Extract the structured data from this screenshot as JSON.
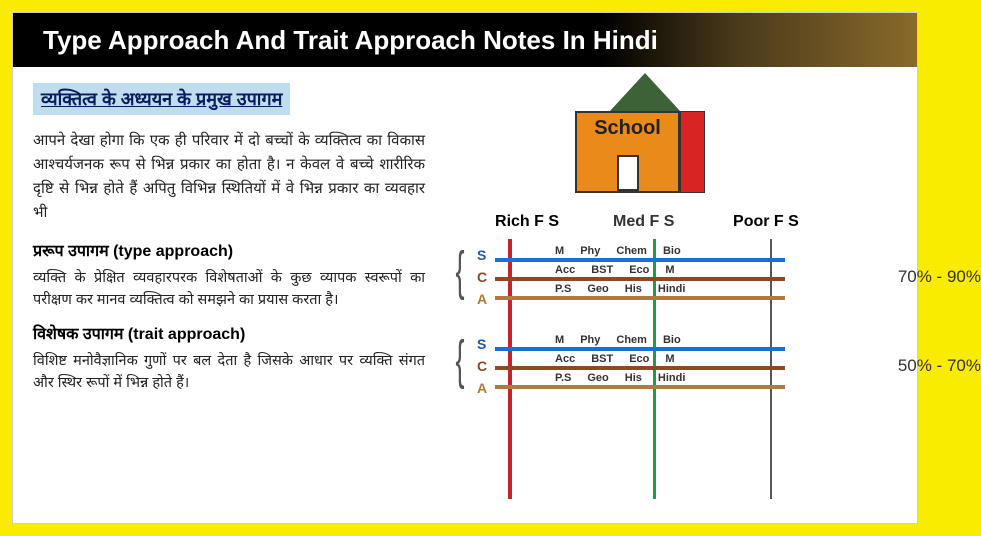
{
  "header": {
    "title": "Type Approach And Trait Approach Notes In Hindi"
  },
  "left": {
    "heading": "व्यक्तित्व के अध्ययन के प्रमुख उपागम",
    "intro": "आपने देखा होगा कि एक ही परिवार में दो बच्चों के व्यक्तित्व का विकास आश्चर्यजनक रूप से भिन्न प्रकार का होता है। न केवल वे बच्चे शारीरिक दृष्टि से भिन्न होते हैं अपितु विभिन्न स्थितियों में वे भिन्न प्रकार का व्यवहार भी",
    "type_heading": "प्ररूप उपागम (type approach)",
    "type_para": "व्यक्ति के प्रेक्षित व्यवहारपरक विशेषताओं के कुछ व्यापक स्वरूपों का परीक्षण कर मानव व्यक्तित्व को समझने का प्रयास करता है।",
    "trait_heading": "विशेषक उपागम (trait approach)",
    "trait_para": "विशिष्ट मनोवैज्ञानिक गुणों पर बल देता है जिसके आधार पर व्यक्ति संगत और स्थिर रूपों में भिन्न होते हैं।"
  },
  "school": {
    "label": "School"
  },
  "chart": {
    "columns": {
      "rich": "Rich F S",
      "med": "Med F S",
      "poor": "Poor F S"
    },
    "sideLabels": {
      "s": "S",
      "c": "C",
      "a": "A"
    },
    "subjects": {
      "row1": [
        "M",
        "Phy",
        "Chem",
        "Bio"
      ],
      "row2": [
        "Acc",
        "BST",
        "Eco",
        "M"
      ],
      "row3": [
        "P.S",
        "Geo",
        "His",
        "Hindi"
      ]
    },
    "percentages": {
      "block1": "70% - 90%",
      "block2": "50% - 70%"
    },
    "colors": {
      "red": "#c92424",
      "green": "#1a9e4a",
      "black": "#555555",
      "blue": "#1a6ed9",
      "brown": "#8a4a24",
      "tan": "#b07a3a"
    }
  }
}
